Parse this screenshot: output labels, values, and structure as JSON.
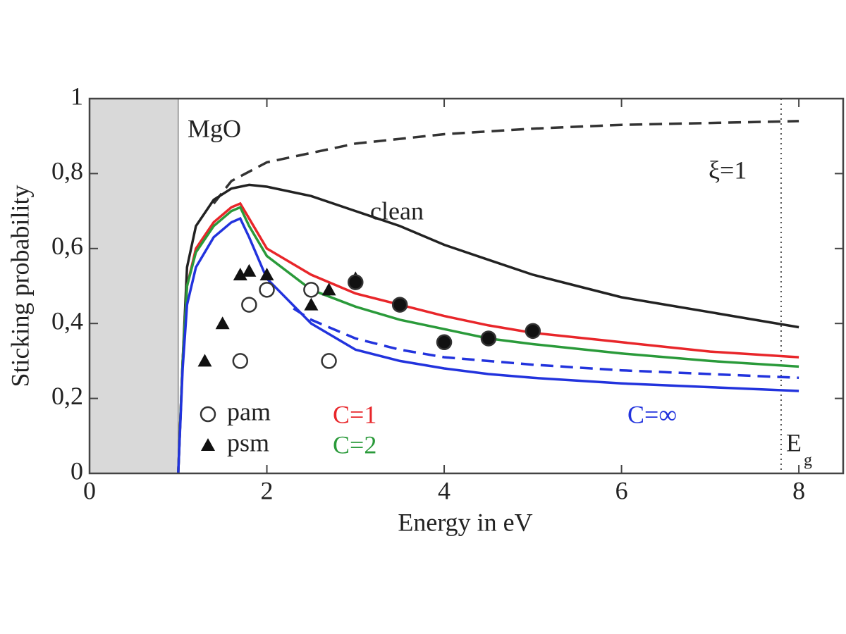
{
  "chart_data": {
    "type": "line",
    "x_label": "Energy in eV",
    "y_label": "Sticking probability",
    "xlim": [
      0,
      8.5
    ],
    "ylim": [
      0,
      1
    ],
    "xticks": [
      0,
      2,
      4,
      6,
      8
    ],
    "yticks": [
      0,
      {
        "value": 0.2,
        "label": "0,2"
      },
      {
        "value": 0.4,
        "label": "0,4"
      },
      {
        "value": 0.6,
        "label": "0,6"
      },
      {
        "value": 0.8,
        "label": "0,8"
      },
      1
    ],
    "shaded_region": [
      0,
      1
    ],
    "eg_line": 7.8,
    "annotations": [
      "MgO",
      {
        "text": "E",
        "subscript": "g"
      }
    ],
    "series": [
      {
        "name": "ξ=1",
        "color": "#333333",
        "dash": true,
        "x": [
          1.4,
          1.6,
          2,
          3,
          4,
          5,
          6,
          7,
          8
        ],
        "values": [
          0.72,
          0.78,
          0.83,
          0.88,
          0.905,
          0.92,
          0.93,
          0.935,
          0.94
        ]
      },
      {
        "name": "clean",
        "color": "#222222",
        "dash": false,
        "x": [
          1,
          1.05,
          1.1,
          1.2,
          1.4,
          1.6,
          1.8,
          2,
          2.5,
          3,
          3.5,
          4,
          4.5,
          5,
          5.5,
          6,
          6.5,
          7,
          7.5,
          8
        ],
        "values": [
          0,
          0.3,
          0.55,
          0.66,
          0.73,
          0.76,
          0.77,
          0.765,
          0.74,
          0.7,
          0.66,
          0.61,
          0.57,
          0.53,
          0.5,
          0.47,
          0.45,
          0.43,
          0.41,
          0.39
        ]
      },
      {
        "name": "C=1",
        "color": "#e8262a",
        "dash": false,
        "x": [
          1,
          1.05,
          1.1,
          1.2,
          1.4,
          1.6,
          1.7,
          1.8,
          2,
          2.5,
          3,
          3.5,
          4,
          4.5,
          5,
          6,
          7,
          8
        ],
        "values": [
          0,
          0.3,
          0.5,
          0.6,
          0.67,
          0.71,
          0.72,
          0.68,
          0.6,
          0.53,
          0.48,
          0.45,
          0.42,
          0.395,
          0.375,
          0.35,
          0.325,
          0.31
        ]
      },
      {
        "name": "C=2",
        "color": "#2a9a3a",
        "dash": false,
        "x": [
          1,
          1.05,
          1.1,
          1.2,
          1.4,
          1.6,
          1.7,
          1.8,
          2,
          2.5,
          3,
          3.5,
          4,
          4.5,
          5,
          6,
          7,
          8
        ],
        "values": [
          0,
          0.3,
          0.5,
          0.59,
          0.66,
          0.7,
          0.71,
          0.66,
          0.58,
          0.49,
          0.445,
          0.41,
          0.385,
          0.36,
          0.345,
          0.32,
          0.3,
          0.285
        ]
      },
      {
        "name": "C=∞",
        "color": "#2233dd",
        "dash": false,
        "x": [
          1,
          1.05,
          1.1,
          1.2,
          1.4,
          1.6,
          1.7,
          1.8,
          2,
          2.5,
          3,
          3.5,
          4,
          4.5,
          5,
          6,
          7,
          8
        ],
        "values": [
          0,
          0.28,
          0.45,
          0.55,
          0.63,
          0.67,
          0.68,
          0.63,
          0.52,
          0.4,
          0.33,
          0.3,
          0.28,
          0.265,
          0.255,
          0.24,
          0.23,
          0.22
        ]
      },
      {
        "color": "#2233dd",
        "dash": true,
        "x": [
          2.3,
          2.5,
          3,
          3.5,
          4,
          5,
          6,
          7,
          8
        ],
        "values": [
          0.44,
          0.41,
          0.36,
          0.33,
          0.31,
          0.29,
          0.275,
          0.265,
          0.255
        ]
      }
    ],
    "points": [
      {
        "name": "pam",
        "marker": "open-circle",
        "x": [
          1.7,
          1.8,
          2.0,
          2.5,
          2.7
        ],
        "values": [
          0.3,
          0.45,
          0.49,
          0.49,
          0.3
        ]
      },
      {
        "name": "psm",
        "marker": "triangle",
        "x": [
          1.3,
          1.5,
          1.7,
          1.8,
          2.0,
          2.5,
          2.7,
          3.0
        ],
        "values": [
          0.3,
          0.4,
          0.53,
          0.54,
          0.53,
          0.45,
          0.49,
          0.52
        ]
      },
      {
        "marker": "filled-circle",
        "x": [
          3,
          3.5,
          4,
          4.5,
          5
        ],
        "values": [
          0.51,
          0.45,
          0.35,
          0.36,
          0.38
        ]
      }
    ]
  }
}
